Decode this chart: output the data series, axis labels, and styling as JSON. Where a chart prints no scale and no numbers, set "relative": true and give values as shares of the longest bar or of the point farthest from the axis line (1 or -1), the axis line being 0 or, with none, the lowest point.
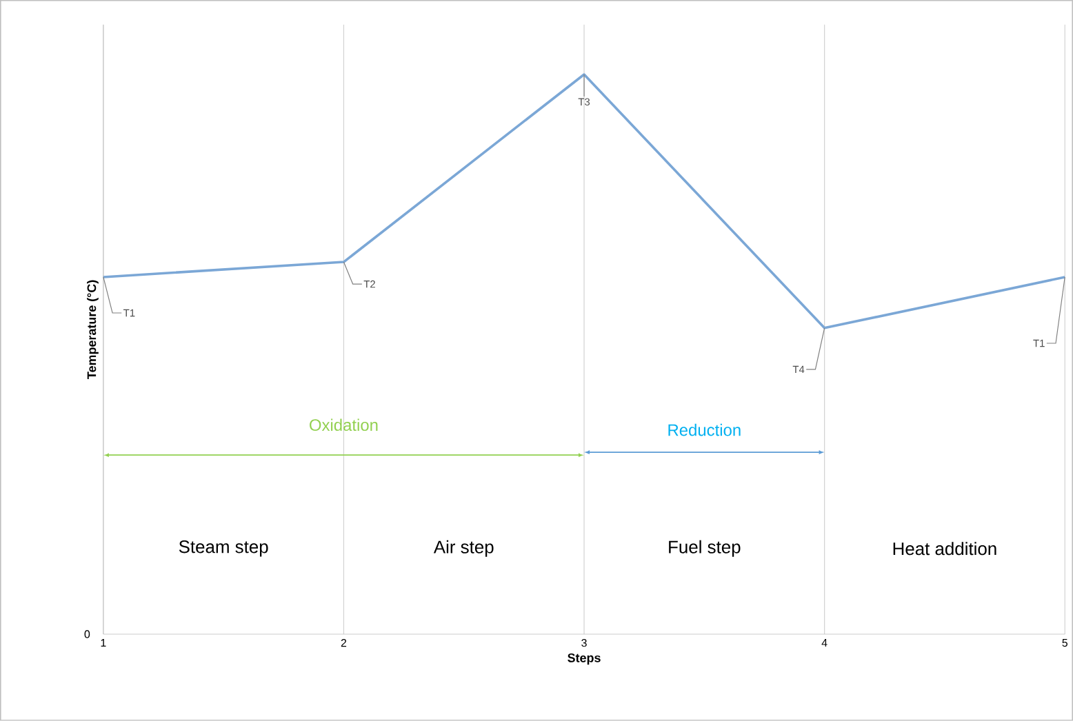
{
  "chart_data": {
    "type": "line",
    "relative": true,
    "xlabel": "Steps",
    "ylabel": "Temperature (°C)",
    "x": [
      1,
      2,
      3,
      4,
      5
    ],
    "series": [
      {
        "color": "#7ba7d6",
        "values": [
          0.638,
          0.665,
          1,
          0.547,
          0.638
        ]
      }
    ],
    "xlim": [
      1,
      5
    ],
    "xticks": [
      1,
      2,
      3,
      4,
      5
    ],
    "grid": "x",
    "legend": false,
    "marker": "none",
    "line_style": "solid",
    "annotations": [
      {
        "text": "T1",
        "x": 1,
        "y": 0.638
      },
      {
        "text": "T2",
        "x": 2,
        "y": 0.665
      },
      {
        "text": "T3",
        "x": 3,
        "y": 1
      },
      {
        "text": "T4",
        "x": 4,
        "y": 0.547
      },
      {
        "text": "T1",
        "x": 5,
        "y": 0.638
      },
      "Oxidation",
      "Reduction",
      "Steam step",
      "Air step",
      "Fuel step",
      "Heat addition",
      "0"
    ]
  }
}
